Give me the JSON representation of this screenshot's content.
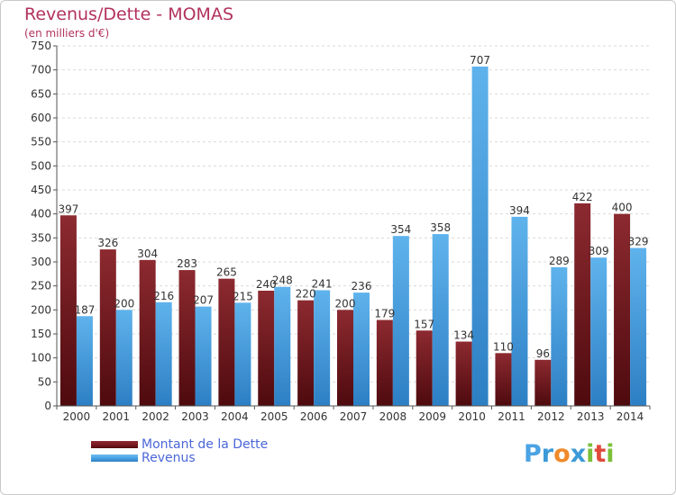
{
  "header": {
    "title": "Revenus/Dette - MOMAS",
    "subtitle": "(en milliers d'€)"
  },
  "colors": {
    "dette": "#7a1a20",
    "revenus": "#4aa3e3",
    "title": "#b2325c",
    "legend_text": "#4a66d8"
  },
  "chart_data": {
    "type": "bar",
    "title": "Revenus/Dette - MOMAS",
    "subtitle": "(en milliers d'€)",
    "categories": [
      "2000",
      "2001",
      "2002",
      "2003",
      "2004",
      "2005",
      "2006",
      "2007",
      "2008",
      "2009",
      "2010",
      "2011",
      "2012",
      "2013",
      "2014"
    ],
    "series": [
      {
        "name": "Montant de la Dette",
        "values": [
          397,
          326,
          304,
          283,
          265,
          240,
          220,
          200,
          179,
          157,
          134,
          110,
          96,
          422,
          400
        ]
      },
      {
        "name": "Revenus",
        "values": [
          187,
          200,
          216,
          207,
          215,
          248,
          241,
          236,
          354,
          358,
          707,
          394,
          289,
          309,
          329
        ]
      }
    ],
    "ylim": [
      0,
      750
    ],
    "yticks": [
      0,
      50,
      100,
      150,
      200,
      250,
      300,
      350,
      400,
      450,
      500,
      550,
      600,
      650,
      700,
      750
    ],
    "grid": true,
    "legend": "bottom-left"
  },
  "legend": {
    "items": [
      {
        "label": "Montant de la Dette"
      },
      {
        "label": "Revenus"
      }
    ]
  },
  "logo": {
    "letters": [
      "P",
      "r",
      "o",
      "x",
      "i",
      "t",
      "i"
    ]
  }
}
